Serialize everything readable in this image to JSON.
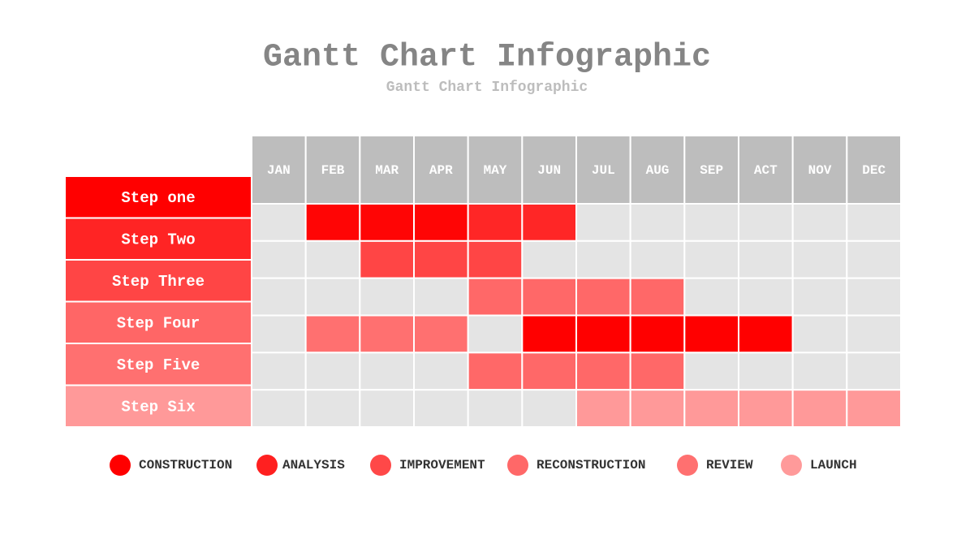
{
  "header": {
    "title": "Gantt Chart Infographic",
    "subtitle": "Gantt Chart Infographic"
  },
  "months": [
    "JAN",
    "FEB",
    "MAR",
    "APR",
    "MAY",
    "JUN",
    "JUL",
    "AUG",
    "SEP",
    "ACT",
    "NOV",
    "DEC"
  ],
  "steps": [
    {
      "label": "Step one",
      "color": "#ff0000"
    },
    {
      "label": "Step Two",
      "color": "#ff2424"
    },
    {
      "label": "Step Three",
      "color": "#ff4545"
    },
    {
      "label": "Step Four",
      "color": "#ff6666"
    },
    {
      "label": "Step Five",
      "color": "#ff7070"
    },
    {
      "label": "Step Six",
      "color": "#ff9999"
    }
  ],
  "rows": [
    [
      null,
      "#ff0505",
      "#ff0505",
      "#ff0505",
      "#ff2626",
      "#ff2626",
      null,
      null,
      null,
      null,
      null,
      null
    ],
    [
      null,
      null,
      "#ff4545",
      "#ff4545",
      "#ff4545",
      null,
      null,
      null,
      null,
      null,
      null,
      null
    ],
    [
      null,
      null,
      null,
      null,
      "#ff6868",
      "#ff6868",
      "#ff6868",
      "#ff6868",
      null,
      null,
      null,
      null
    ],
    [
      null,
      "#ff7070",
      "#ff7070",
      "#ff7070",
      null,
      "#ff0000",
      "#ff0000",
      "#ff0000",
      "#ff0000",
      "#ff0000",
      null,
      null
    ],
    [
      null,
      null,
      null,
      null,
      "#ff6868",
      "#ff6868",
      "#ff6868",
      "#ff6868",
      null,
      null,
      null,
      null
    ],
    [
      null,
      null,
      null,
      null,
      null,
      null,
      "#ff9999",
      "#ff9999",
      "#ff9999",
      "#ff9999",
      "#ff9999",
      "#ff9999"
    ]
  ],
  "legend": [
    {
      "label": "CONSTRUCTION",
      "color": "#ff0000"
    },
    {
      "label": "ANALYSIS",
      "color": "#ff2020"
    },
    {
      "label": "IMPROVEMENT",
      "color": "#ff4848"
    },
    {
      "label": "RECONSTRUCTION",
      "color": "#ff6868"
    },
    {
      "label": "REVIEW",
      "color": "#ff7070"
    },
    {
      "label": "LAUNCH",
      "color": "#ff9a9a"
    }
  ]
}
